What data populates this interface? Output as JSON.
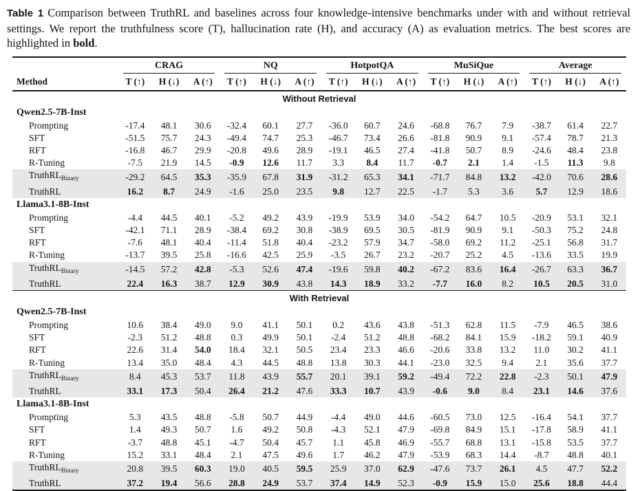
{
  "caption": {
    "label": "Table 1",
    "body": "Comparison between TruthRL and baselines across four knowledge-intensive benchmarks under with and without retrieval settings. We report the truthfulness score (T), hallucination rate (H), and accuracy (A) as evaluation metrics. The best scores are highlighted in ",
    "bold_term": "bold",
    "suffix": "."
  },
  "colors": {
    "highlight_row": "#e7e7e7",
    "rule": "#1a1a1a",
    "text": "#141414"
  },
  "table": {
    "method_header": "Method",
    "groups": [
      "CRAG",
      "NQ",
      "HotpotQA",
      "MuSiQue",
      "Average"
    ],
    "metric_headers": [
      "T (↑)",
      "H (↓)",
      "A (↑)"
    ],
    "sections": [
      {
        "title": "Without Retrieval",
        "model_blocks": [
          {
            "model": "Qwen2.5-7B-Inst",
            "rows": [
              {
                "method": "Prompting",
                "sub": "",
                "highlight": false,
                "values": [
                  "-17.4",
                  "48.1",
                  "30.6",
                  "-32.4",
                  "60.1",
                  "27.7",
                  "-36.0",
                  "60.7",
                  "24.6",
                  "-68.8",
                  "76.7",
                  "7.9",
                  "-38.7",
                  "61.4",
                  "22.7"
                ],
                "bold": []
              },
              {
                "method": "SFT",
                "sub": "",
                "highlight": false,
                "values": [
                  "-51.5",
                  "75.7",
                  "24.3",
                  "-49.4",
                  "74.7",
                  "25.3",
                  "-46.7",
                  "73.4",
                  "26.6",
                  "-81.8",
                  "90.9",
                  "9.1",
                  "-57.4",
                  "78.7",
                  "21.3"
                ],
                "bold": []
              },
              {
                "method": "RFT",
                "sub": "",
                "highlight": false,
                "values": [
                  "-16.8",
                  "46.7",
                  "29.9",
                  "-20.8",
                  "49.6",
                  "28.9",
                  "-19.1",
                  "46.5",
                  "27.4",
                  "-41.8",
                  "50.7",
                  "8.9",
                  "-24.6",
                  "48.4",
                  "23.8"
                ],
                "bold": []
              },
              {
                "method": "R-Tuning",
                "sub": "",
                "highlight": false,
                "values": [
                  "-7.5",
                  "21.9",
                  "14.5",
                  "-0.9",
                  "12.6",
                  "11.7",
                  "3.3",
                  "8.4",
                  "11.7",
                  "-0.7",
                  "2.1",
                  "1.4",
                  "-1.5",
                  "11.3",
                  "9.8"
                ],
                "bold": [
                  3,
                  4,
                  7,
                  9,
                  10,
                  13
                ]
              },
              {
                "method": "TruthRL",
                "sub": "Binary",
                "highlight": true,
                "values": [
                  "-29.2",
                  "64.5",
                  "35.3",
                  "-35.9",
                  "67.8",
                  "31.9",
                  "-31.2",
                  "65.3",
                  "34.1",
                  "-71.7",
                  "84.8",
                  "13.2",
                  "-42.0",
                  "70.6",
                  "28.6"
                ],
                "bold": [
                  2,
                  5,
                  8,
                  11,
                  14
                ]
              },
              {
                "method": "TruthRL",
                "sub": "",
                "highlight": true,
                "values": [
                  "16.2",
                  "8.7",
                  "24.9",
                  "-1.6",
                  "25.0",
                  "23.5",
                  "9.8",
                  "12.7",
                  "22.5",
                  "-1.7",
                  "5.3",
                  "3.6",
                  "5.7",
                  "12.9",
                  "18.6"
                ],
                "bold": [
                  0,
                  1,
                  6,
                  12
                ]
              }
            ]
          },
          {
            "model": "Llama3.1-8B-Inst",
            "rows": [
              {
                "method": "Prompting",
                "sub": "",
                "highlight": false,
                "values": [
                  "-4.4",
                  "44.5",
                  "40.1",
                  "-5.2",
                  "49.2",
                  "43.9",
                  "-19.9",
                  "53.9",
                  "34.0",
                  "-54.2",
                  "64.7",
                  "10.5",
                  "-20.9",
                  "53.1",
                  "32.1"
                ],
                "bold": []
              },
              {
                "method": "SFT",
                "sub": "",
                "highlight": false,
                "values": [
                  "-42.1",
                  "71.1",
                  "28.9",
                  "-38.4",
                  "69.2",
                  "30.8",
                  "-38.9",
                  "69.5",
                  "30.5",
                  "-81.9",
                  "90.9",
                  "9.1",
                  "-50.3",
                  "75.2",
                  "24.8"
                ],
                "bold": []
              },
              {
                "method": "RFT",
                "sub": "",
                "highlight": false,
                "values": [
                  "-7.6",
                  "48.1",
                  "40.4",
                  "-11.4",
                  "51.8",
                  "40.4",
                  "-23.2",
                  "57.9",
                  "34.7",
                  "-58.0",
                  "69.2",
                  "11.2",
                  "-25.1",
                  "56.8",
                  "31.7"
                ],
                "bold": []
              },
              {
                "method": "R-Tuning",
                "sub": "",
                "highlight": false,
                "values": [
                  "-13.7",
                  "39.5",
                  "25.8",
                  "-16.6",
                  "42.5",
                  "25.9",
                  "-3.5",
                  "26.7",
                  "23.2",
                  "-20.7",
                  "25.2",
                  "4.5",
                  "-13.6",
                  "33.5",
                  "19.9"
                ],
                "bold": []
              },
              {
                "method": "TruthRL",
                "sub": "Binary",
                "highlight": true,
                "values": [
                  "-14.5",
                  "57.2",
                  "42.8",
                  "-5.3",
                  "52.6",
                  "47.4",
                  "-19.6",
                  "59.8",
                  "40.2",
                  "-67.2",
                  "83.6",
                  "16.4",
                  "-26.7",
                  "63.3",
                  "36.7"
                ],
                "bold": [
                  2,
                  5,
                  8,
                  11,
                  14
                ]
              },
              {
                "method": "TruthRL",
                "sub": "",
                "highlight": true,
                "values": [
                  "22.4",
                  "16.3",
                  "38.7",
                  "12.9",
                  "30.9",
                  "43.8",
                  "14.3",
                  "18.9",
                  "33.2",
                  "-7.7",
                  "16.0",
                  "8.2",
                  "10.5",
                  "20.5",
                  "31.0"
                ],
                "bold": [
                  0,
                  1,
                  3,
                  4,
                  6,
                  7,
                  9,
                  10,
                  12,
                  13
                ]
              }
            ]
          }
        ]
      },
      {
        "title": "With Retrieval",
        "model_blocks": [
          {
            "model": "Qwen2.5-7B-Inst",
            "rows": [
              {
                "method": "Prompting",
                "sub": "",
                "highlight": false,
                "values": [
                  "10.6",
                  "38.4",
                  "49.0",
                  "9.0",
                  "41.1",
                  "50.1",
                  "0.2",
                  "43.6",
                  "43.8",
                  "-51.3",
                  "62.8",
                  "11.5",
                  "-7.9",
                  "46.5",
                  "38.6"
                ],
                "bold": []
              },
              {
                "method": "SFT",
                "sub": "",
                "highlight": false,
                "values": [
                  "-2.3",
                  "51.2",
                  "48.8",
                  "0.3",
                  "49.9",
                  "50.1",
                  "-2.4",
                  "51.2",
                  "48.8",
                  "-68.2",
                  "84.1",
                  "15.9",
                  "-18.2",
                  "59.1",
                  "40.9"
                ],
                "bold": []
              },
              {
                "method": "RFT",
                "sub": "",
                "highlight": false,
                "values": [
                  "22.6",
                  "31.4",
                  "54.0",
                  "18.4",
                  "32.1",
                  "50.5",
                  "23.4",
                  "23.3",
                  "46.6",
                  "-20.6",
                  "33.8",
                  "13.2",
                  "11.0",
                  "30.2",
                  "41.1"
                ],
                "bold": [
                  2
                ]
              },
              {
                "method": "R-Tuning",
                "sub": "",
                "highlight": false,
                "values": [
                  "13.4",
                  "35.0",
                  "48.4",
                  "4.3",
                  "44.5",
                  "48.8",
                  "13.8",
                  "30.3",
                  "44.1",
                  "-23.0",
                  "32.5",
                  "9.4",
                  "2.1",
                  "35.6",
                  "37.7"
                ],
                "bold": []
              },
              {
                "method": "TruthRL",
                "sub": "Binary",
                "highlight": true,
                "values": [
                  "8.4",
                  "45.3",
                  "53.7",
                  "11.8",
                  "43.9",
                  "55.7",
                  "20.1",
                  "39.1",
                  "59.2",
                  "-49.4",
                  "72.2",
                  "22.8",
                  "-2.3",
                  "50.1",
                  "47.9"
                ],
                "bold": [
                  5,
                  8,
                  11,
                  14
                ]
              },
              {
                "method": "TruthRL",
                "sub": "",
                "highlight": true,
                "values": [
                  "33.1",
                  "17.3",
                  "50.4",
                  "26.4",
                  "21.2",
                  "47.6",
                  "33.3",
                  "10.7",
                  "43.9",
                  "-0.6",
                  "9.0",
                  "8.4",
                  "23.1",
                  "14.6",
                  "37.6"
                ],
                "bold": [
                  0,
                  1,
                  3,
                  4,
                  6,
                  7,
                  9,
                  10,
                  12,
                  13
                ]
              }
            ]
          },
          {
            "model": "Llama3.1-8B-Inst",
            "rows": [
              {
                "method": "Prompting",
                "sub": "",
                "highlight": false,
                "values": [
                  "5.3",
                  "43.5",
                  "48.8",
                  "-5.8",
                  "50.7",
                  "44.9",
                  "-4.4",
                  "49.0",
                  "44.6",
                  "-60.5",
                  "73.0",
                  "12.5",
                  "-16.4",
                  "54.1",
                  "37.7"
                ],
                "bold": []
              },
              {
                "method": "SFT",
                "sub": "",
                "highlight": false,
                "values": [
                  "1.4",
                  "49.3",
                  "50.7",
                  "1.6",
                  "49.2",
                  "50.8",
                  "-4.3",
                  "52.1",
                  "47.9",
                  "-69.8",
                  "84.9",
                  "15.1",
                  "-17.8",
                  "58.9",
                  "41.1"
                ],
                "bold": []
              },
              {
                "method": "RFT",
                "sub": "",
                "highlight": false,
                "values": [
                  "-3.7",
                  "48.8",
                  "45.1",
                  "-4.7",
                  "50.4",
                  "45.7",
                  "1.1",
                  "45.8",
                  "46.9",
                  "-55.7",
                  "68.8",
                  "13.1",
                  "-15.8",
                  "53.5",
                  "37.7"
                ],
                "bold": []
              },
              {
                "method": "R-Tuning",
                "sub": "",
                "highlight": false,
                "values": [
                  "15.2",
                  "33.1",
                  "48.4",
                  "2.1",
                  "47.5",
                  "49.6",
                  "1.7",
                  "46.2",
                  "47.9",
                  "-53.9",
                  "68.3",
                  "14.4",
                  "-8.7",
                  "48.8",
                  "40.1"
                ],
                "bold": []
              },
              {
                "method": "TruthRL",
                "sub": "Binary",
                "highlight": true,
                "values": [
                  "20.8",
                  "39.5",
                  "60.3",
                  "19.0",
                  "40.5",
                  "59.5",
                  "25.9",
                  "37.0",
                  "62.9",
                  "-47.6",
                  "73.7",
                  "26.1",
                  "4.5",
                  "47.7",
                  "52.2"
                ],
                "bold": [
                  2,
                  5,
                  8,
                  11,
                  14
                ]
              },
              {
                "method": "TruthRL",
                "sub": "",
                "highlight": true,
                "values": [
                  "37.2",
                  "19.4",
                  "56.6",
                  "28.8",
                  "24.9",
                  "53.7",
                  "37.4",
                  "14.9",
                  "52.3",
                  "-0.9",
                  "15.9",
                  "15.0",
                  "25.6",
                  "18.8",
                  "44.4"
                ],
                "bold": [
                  0,
                  1,
                  3,
                  4,
                  6,
                  7,
                  9,
                  10,
                  12,
                  13
                ]
              }
            ]
          }
        ]
      }
    ]
  }
}
